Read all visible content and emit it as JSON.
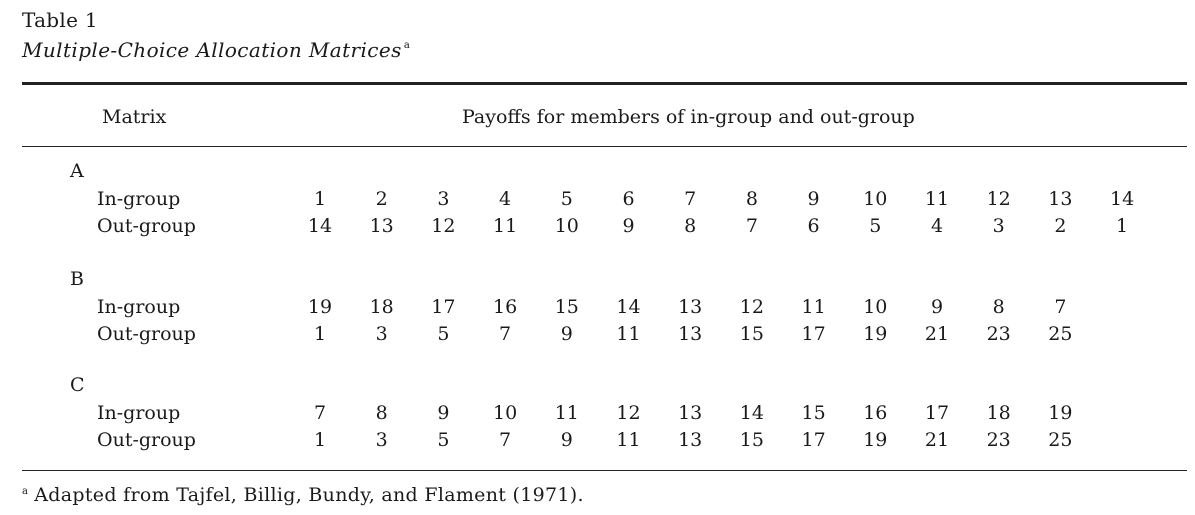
{
  "title": "Table 1",
  "subtitle": "Multiple-Choice Allocation Matrices",
  "subtitle_mark": "a",
  "header": {
    "matrix": "Matrix",
    "payoffs": "Payoffs for members of in-group and out-group"
  },
  "matrices": [
    {
      "name": "A",
      "rows": [
        {
          "label": "In-group",
          "values": [
            "1",
            "2",
            "3",
            "4",
            "5",
            "6",
            "7",
            "8",
            "9",
            "10",
            "11",
            "12",
            "13",
            "14"
          ]
        },
        {
          "label": "Out-group",
          "values": [
            "14",
            "13",
            "12",
            "11",
            "10",
            "9",
            "8",
            "7",
            "6",
            "5",
            "4",
            "3",
            "2",
            "1"
          ]
        }
      ]
    },
    {
      "name": "B",
      "rows": [
        {
          "label": "In-group",
          "values": [
            "19",
            "18",
            "17",
            "16",
            "15",
            "14",
            "13",
            "12",
            "11",
            "10",
            "9",
            "8",
            "7"
          ]
        },
        {
          "label": "Out-group",
          "values": [
            "1",
            "3",
            "5",
            "7",
            "9",
            "11",
            "13",
            "15",
            "17",
            "19",
            "21",
            "23",
            "25"
          ]
        }
      ]
    },
    {
      "name": "C",
      "rows": [
        {
          "label": "In-group",
          "values": [
            "7",
            "8",
            "9",
            "10",
            "11",
            "12",
            "13",
            "14",
            "15",
            "16",
            "17",
            "18",
            "19"
          ]
        },
        {
          "label": "Out-group",
          "values": [
            "1",
            "3",
            "5",
            "7",
            "9",
            "11",
            "13",
            "15",
            "17",
            "19",
            "21",
            "23",
            "25"
          ]
        }
      ]
    }
  ],
  "footnote": {
    "mark": "a",
    "text": "Adapted from Tajfel, Billig, Bundy, and Flament (1971)."
  }
}
